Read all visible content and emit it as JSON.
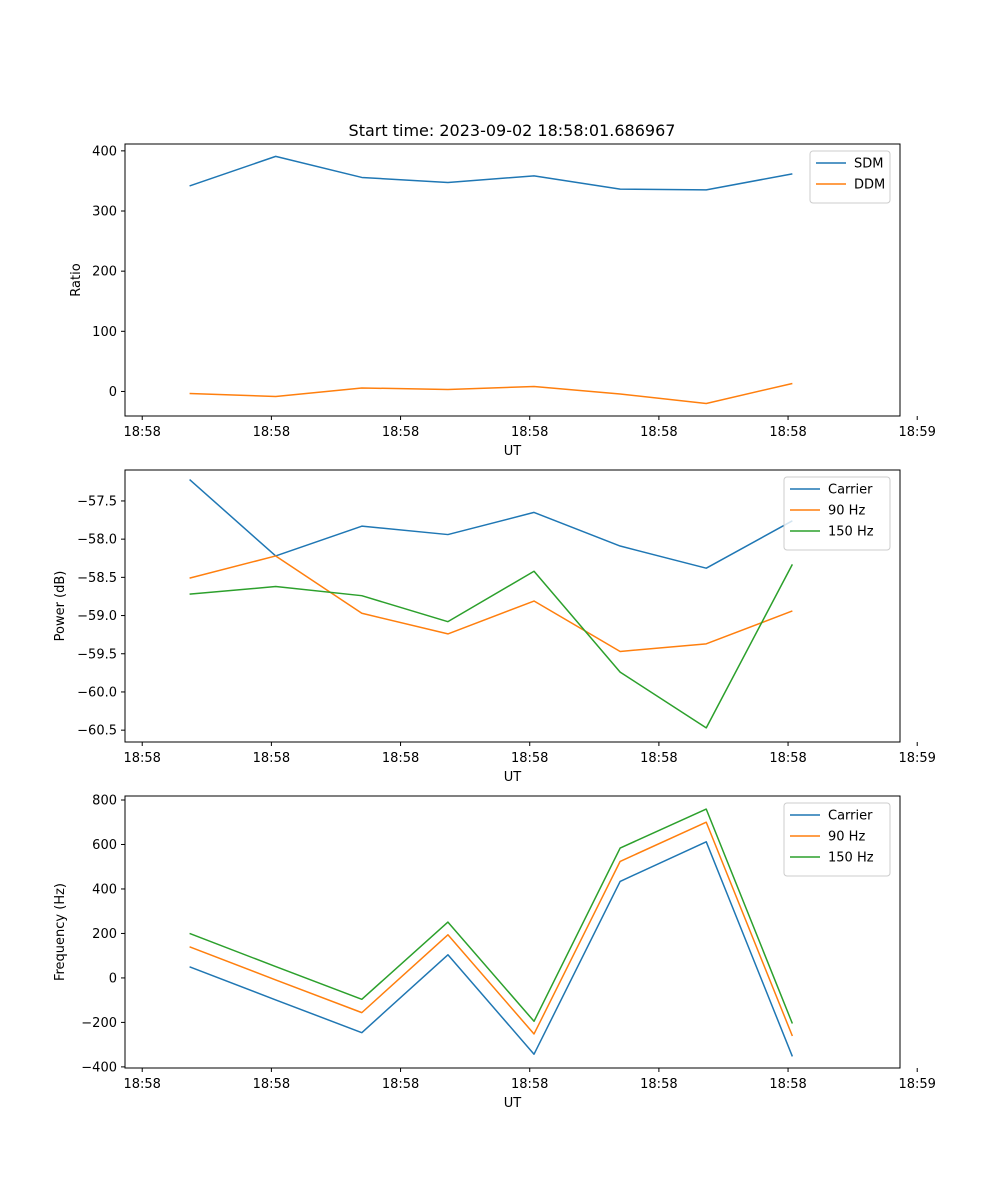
{
  "figure_title": "Start time: 2023-09-02 18:58:01.686967",
  "chart_data": [
    {
      "type": "line",
      "title": "Start time: 2023-09-02 18:58:01.686967",
      "xlabel": "UT",
      "ylabel": "Ratio",
      "x": [
        1,
        2,
        3,
        4,
        5,
        6,
        7,
        8
      ],
      "xlim": [
        0.25,
        9.25
      ],
      "xticks": [
        0.45,
        1.95,
        3.45,
        4.95,
        6.45,
        7.95,
        9.45
      ],
      "xtick_labels": [
        "18:58",
        "18:58",
        "18:58",
        "18:58",
        "18:58",
        "18:58",
        "18:59"
      ],
      "ylim": [
        -40.8,
        411.4
      ],
      "yticks": [
        0,
        100,
        200,
        300,
        400
      ],
      "ytick_labels": [
        "0",
        "100",
        "200",
        "300",
        "400"
      ],
      "legend_position": "top-right",
      "series": [
        {
          "name": "SDM",
          "color": "#1f77b4",
          "values": [
            341.7,
            390.8,
            355.8,
            347.4,
            358.4,
            336.4,
            335.2,
            361.7
          ]
        },
        {
          "name": "DDM",
          "color": "#ff7f0e",
          "values": [
            -3.3,
            -8.3,
            5.8,
            3.3,
            8.3,
            -4.2,
            -20.0,
            13.3
          ]
        }
      ]
    },
    {
      "type": "line",
      "title": "",
      "xlabel": "UT",
      "ylabel": "Power (dB)",
      "x": [
        1,
        2,
        3,
        4,
        5,
        6,
        7,
        8
      ],
      "xlim": [
        0.25,
        9.25
      ],
      "xticks": [
        0.45,
        1.95,
        3.45,
        4.95,
        6.45,
        7.95,
        9.45
      ],
      "xtick_labels": [
        "18:58",
        "18:58",
        "18:58",
        "18:58",
        "18:58",
        "18:58",
        "18:59"
      ],
      "ylim": [
        -60.655,
        -57.095
      ],
      "yticks": [
        -57.5,
        -58.0,
        -58.5,
        -59.0,
        -59.5,
        -60.0,
        -60.5
      ],
      "ytick_labels": [
        "−57.5",
        "−58.0",
        "−58.5",
        "−59.0",
        "−59.5",
        "−60.0",
        "−60.5"
      ],
      "legend_position": "top-right",
      "series": [
        {
          "name": "Carrier",
          "color": "#1f77b4",
          "values": [
            -57.22,
            -58.22,
            -57.83,
            -57.94,
            -57.65,
            -58.09,
            -58.38,
            -57.76
          ]
        },
        {
          "name": "90 Hz",
          "color": "#ff7f0e",
          "values": [
            -58.51,
            -58.22,
            -58.97,
            -59.24,
            -58.81,
            -59.47,
            -59.37,
            -58.94
          ]
        },
        {
          "name": "150 Hz",
          "color": "#2ca02c",
          "values": [
            -58.72,
            -58.62,
            -58.74,
            -59.08,
            -58.42,
            -59.74,
            -60.47,
            -58.33
          ]
        }
      ]
    },
    {
      "type": "line",
      "title": "",
      "xlabel": "UT",
      "ylabel": "Frequency (Hz)",
      "x": [
        1,
        2,
        3,
        4,
        5,
        6,
        7,
        8
      ],
      "xlim": [
        0.25,
        9.25
      ],
      "xticks": [
        0.45,
        1.95,
        3.45,
        4.95,
        6.45,
        7.95,
        9.45
      ],
      "xtick_labels": [
        "18:58",
        "18:58",
        "18:58",
        "18:58",
        "18:58",
        "18:58",
        "18:59"
      ],
      "ylim": [
        -405,
        818
      ],
      "yticks": [
        800,
        600,
        400,
        200,
        0,
        -200,
        -400
      ],
      "ytick_labels": [
        "800",
        "600",
        "400",
        "200",
        "0",
        "−200",
        "−400"
      ],
      "legend_position": "top-right",
      "series": [
        {
          "name": "Carrier",
          "color": "#1f77b4",
          "values": [
            50,
            -99,
            -246,
            104,
            -343,
            434,
            612,
            -353
          ]
        },
        {
          "name": "90 Hz",
          "color": "#ff7f0e",
          "values": [
            140,
            -9,
            -156,
            194,
            -252,
            524,
            700,
            -261
          ]
        },
        {
          "name": "150 Hz",
          "color": "#2ca02c",
          "values": [
            200,
            51,
            -96,
            251,
            -195,
            584,
            759,
            -205
          ]
        }
      ]
    }
  ]
}
